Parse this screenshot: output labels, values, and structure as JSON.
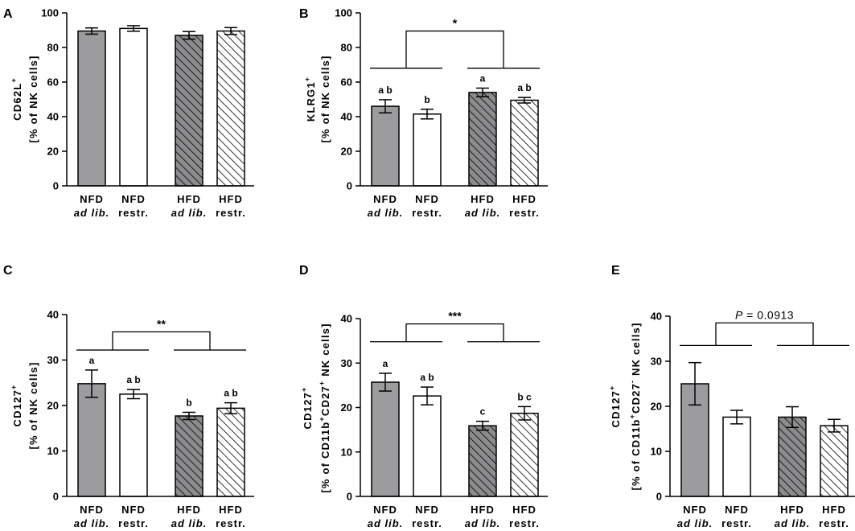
{
  "figure": {
    "colors": {
      "nfd_fill": "#9c9b9d",
      "restr_fill": "#ffffff",
      "hfd_adlib_fill": "#8c8b8d",
      "hatch_line": "#000000",
      "axis": "#000000"
    }
  },
  "chart_data": [
    {
      "id": "A",
      "panel_letter": "A",
      "type": "bar",
      "ylabel_line1": "CD62L",
      "ylabel_sup": "+",
      "ylabel_line2": "[% of NK cells]",
      "ylabel": [
        [
          {
            "t": "CD62L"
          },
          {
            "t": "+",
            "sup": true
          }
        ],
        [
          {
            "t": "[% of NK cells]"
          }
        ]
      ],
      "ylim": [
        0,
        100
      ],
      "yticks": [
        0,
        20,
        40,
        60,
        80,
        100
      ],
      "categories": [
        {
          "line1": "NFD",
          "line2": "ad lib.",
          "line2_italic": true,
          "fill": "gray",
          "value": 89.5,
          "err": 1.8,
          "letter": ""
        },
        {
          "line1": "NFD",
          "line2": "restr.",
          "line2_italic": false,
          "fill": "white",
          "value": 91,
          "err": 1.6,
          "letter": ""
        },
        {
          "line1": "HFD",
          "line2": "ad lib.",
          "line2_italic": true,
          "fill": "darkhatch",
          "value": 87,
          "err": 2.2,
          "letter": ""
        },
        {
          "line1": "HFD",
          "line2": "restr.",
          "line2_italic": false,
          "fill": "whitehatch",
          "value": 89.5,
          "err": 2.0,
          "letter": ""
        }
      ],
      "significance": null
    },
    {
      "id": "B",
      "panel_letter": "B",
      "type": "bar",
      "ylabel_line1": "KLRG1",
      "ylabel_sup": "+",
      "ylabel_line2": "[% of NK cells]",
      "ylabel": [
        [
          {
            "t": "KLRG1"
          },
          {
            "t": "+",
            "sup": true
          }
        ],
        [
          {
            "t": "[% of NK cells]"
          }
        ]
      ],
      "ylim": [
        0,
        100
      ],
      "yticks": [
        0,
        20,
        40,
        60,
        80,
        100
      ],
      "categories": [
        {
          "line1": "NFD",
          "line2": "ad lib.",
          "line2_italic": true,
          "fill": "gray",
          "value": 46,
          "err": 3.8,
          "letter": "a b"
        },
        {
          "line1": "NFD",
          "line2": "restr.",
          "line2_italic": false,
          "fill": "white",
          "value": 41.5,
          "err": 2.8,
          "letter": "b"
        },
        {
          "line1": "HFD",
          "line2": "ad lib.",
          "line2_italic": true,
          "fill": "darkhatch",
          "value": 54,
          "err": 2.5,
          "letter": "a"
        },
        {
          "line1": "HFD",
          "line2": "restr.",
          "line2_italic": false,
          "fill": "whitehatch",
          "value": 49.5,
          "err": 1.6,
          "letter": "a b"
        }
      ],
      "significance": {
        "label": "*",
        "italic_p": false,
        "group_y": 68,
        "top_y": 89.5
      }
    },
    {
      "id": "C",
      "panel_letter": "C",
      "type": "bar",
      "ylabel_line1": "CD127",
      "ylabel_sup": "+",
      "ylabel_line2": "[% of NK cells]",
      "ylabel": [
        [
          {
            "t": "CD127"
          },
          {
            "t": "+",
            "sup": true
          }
        ],
        [
          {
            "t": "[% of NK cells]"
          }
        ]
      ],
      "ylim": [
        0,
        40
      ],
      "yticks": [
        0,
        10,
        20,
        30,
        40
      ],
      "categories": [
        {
          "line1": "NFD",
          "line2": "ad lib.",
          "line2_italic": true,
          "fill": "gray",
          "value": 24.8,
          "err": 3.0,
          "letter": "a"
        },
        {
          "line1": "NFD",
          "line2": "restr.",
          "line2_italic": false,
          "fill": "white",
          "value": 22.5,
          "err": 1.0,
          "letter": "a b"
        },
        {
          "line1": "HFD",
          "line2": "ad lib.",
          "line2_italic": true,
          "fill": "darkhatch",
          "value": 17.7,
          "err": 0.8,
          "letter": "b"
        },
        {
          "line1": "HFD",
          "line2": "restr.",
          "line2_italic": false,
          "fill": "whitehatch",
          "value": 19.4,
          "err": 1.2,
          "letter": "a b"
        }
      ],
      "significance": {
        "label": "**",
        "italic_p": false,
        "group_y": 32.2,
        "top_y": 36.2
      }
    },
    {
      "id": "D",
      "panel_letter": "D",
      "type": "bar",
      "ylabel_line1": "CD127",
      "ylabel_sup": "+",
      "ylabel_line2": "[% of CD11b+CD27+ NK cells]",
      "ylabel": [
        [
          {
            "t": "CD127"
          },
          {
            "t": "+",
            "sup": true
          }
        ],
        [
          {
            "t": "[% of CD11b"
          },
          {
            "t": "+",
            "sup": true
          },
          {
            "t": "CD27"
          },
          {
            "t": "+",
            "sup": true
          },
          {
            "t": " NK cells]"
          }
        ]
      ],
      "ylim": [
        0,
        40
      ],
      "yticks": [
        0,
        10,
        20,
        30,
        40
      ],
      "categories": [
        {
          "line1": "NFD",
          "line2": "ad lib.",
          "line2_italic": true,
          "fill": "gray",
          "value": 25.7,
          "err": 2.0,
          "letter": "a"
        },
        {
          "line1": "NFD",
          "line2": "restr.",
          "line2_italic": false,
          "fill": "white",
          "value": 22.6,
          "err": 2.0,
          "letter": "a b"
        },
        {
          "line1": "HFD",
          "line2": "ad lib.",
          "line2_italic": true,
          "fill": "darkhatch",
          "value": 15.9,
          "err": 1.0,
          "letter": "c"
        },
        {
          "line1": "HFD",
          "line2": "restr.",
          "line2_italic": false,
          "fill": "whitehatch",
          "value": 18.7,
          "err": 1.5,
          "letter": "b c"
        }
      ],
      "significance": {
        "label": "***",
        "italic_p": false,
        "group_y": 34.8,
        "top_y": 38.8
      }
    },
    {
      "id": "E",
      "panel_letter": "E",
      "type": "bar",
      "ylabel_line1": "CD127",
      "ylabel_sup": "+",
      "ylabel_line2": "[% of CD11b+CD27- NK cells]",
      "ylabel": [
        [
          {
            "t": "CD127"
          },
          {
            "t": "+",
            "sup": true
          }
        ],
        [
          {
            "t": "[% of CD11b"
          },
          {
            "t": "+",
            "sup": true
          },
          {
            "t": "CD27"
          },
          {
            "t": "-",
            "sup": true
          },
          {
            "t": " NK cells]"
          }
        ]
      ],
      "ylim": [
        0,
        40
      ],
      "yticks": [
        0,
        10,
        20,
        30,
        40
      ],
      "categories": [
        {
          "line1": "NFD",
          "line2": "ad lib.",
          "line2_italic": true,
          "fill": "gray",
          "value": 25,
          "err": 4.7,
          "letter": ""
        },
        {
          "line1": "NFD",
          "line2": "restr.",
          "line2_italic": false,
          "fill": "white",
          "value": 17.6,
          "err": 1.5,
          "letter": ""
        },
        {
          "line1": "HFD",
          "line2": "ad lib.",
          "line2_italic": true,
          "fill": "darkhatch",
          "value": 17.6,
          "err": 2.3,
          "letter": ""
        },
        {
          "line1": "HFD",
          "line2": "restr.",
          "line2_italic": false,
          "fill": "whitehatch",
          "value": 15.7,
          "err": 1.4,
          "letter": ""
        }
      ],
      "significance": {
        "label": "P = 0.0913",
        "italic_p": true,
        "p_symbol": "P",
        "p_rest": " = 0.0913",
        "group_y": 33.5,
        "top_y": 38.5
      }
    }
  ]
}
